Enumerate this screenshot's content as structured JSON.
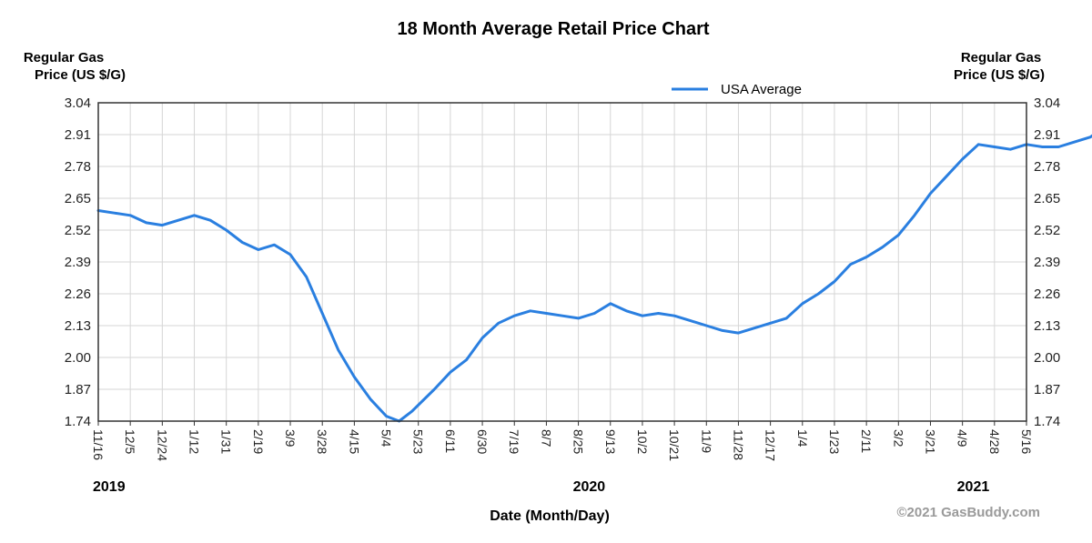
{
  "chart_data": {
    "type": "line",
    "title": "18 Month Average Retail Price Chart",
    "ylabel_left": [
      "Regular Gas",
      "Price (US $/G)"
    ],
    "ylabel_right": [
      "Regular Gas",
      "Price (US $/G)"
    ],
    "xlabel": "Date (Month/Day)",
    "ylim": [
      1.74,
      3.04
    ],
    "yticks": [
      "3.04",
      "2.91",
      "2.78",
      "2.65",
      "2.52",
      "2.39",
      "2.26",
      "2.13",
      "2.00",
      "1.87",
      "1.74"
    ],
    "xticks": [
      "11/16",
      "12/5",
      "12/24",
      "1/12",
      "1/31",
      "2/19",
      "3/9",
      "3/28",
      "4/15",
      "5/4",
      "5/23",
      "6/11",
      "6/30",
      "7/19",
      "8/7",
      "8/25",
      "9/13",
      "10/2",
      "10/21",
      "11/9",
      "11/28",
      "12/17",
      "1/4",
      "1/23",
      "2/11",
      "3/2",
      "3/21",
      "4/9",
      "4/28",
      "5/16"
    ],
    "years": [
      {
        "label": "2019",
        "at_tick": 0
      },
      {
        "label": "2020",
        "at_tick": 15
      },
      {
        "label": "2021",
        "at_tick": 27
      }
    ],
    "grid": true,
    "legend_position": "top-right",
    "series": [
      {
        "name": "USA Average",
        "color": "#2a7fe0",
        "points": [
          [
            0,
            2.6
          ],
          [
            0.5,
            2.59
          ],
          [
            1,
            2.58
          ],
          [
            1.5,
            2.55
          ],
          [
            2,
            2.54
          ],
          [
            2.5,
            2.56
          ],
          [
            3,
            2.58
          ],
          [
            3.5,
            2.56
          ],
          [
            4,
            2.52
          ],
          [
            4.5,
            2.47
          ],
          [
            5,
            2.44
          ],
          [
            5.5,
            2.46
          ],
          [
            6,
            2.42
          ],
          [
            6.5,
            2.33
          ],
          [
            7,
            2.18
          ],
          [
            7.5,
            2.03
          ],
          [
            8,
            1.92
          ],
          [
            8.5,
            1.83
          ],
          [
            9,
            1.76
          ],
          [
            9.4,
            1.74
          ],
          [
            9.8,
            1.78
          ],
          [
            10.5,
            1.87
          ],
          [
            11,
            1.94
          ],
          [
            11.5,
            1.99
          ],
          [
            12,
            2.08
          ],
          [
            12.5,
            2.14
          ],
          [
            13,
            2.17
          ],
          [
            13.5,
            2.19
          ],
          [
            14,
            2.18
          ],
          [
            14.5,
            2.17
          ],
          [
            15,
            2.16
          ],
          [
            15.5,
            2.18
          ],
          [
            16,
            2.22
          ],
          [
            16.5,
            2.19
          ],
          [
            17,
            2.17
          ],
          [
            17.5,
            2.18
          ],
          [
            18,
            2.17
          ],
          [
            18.5,
            2.15
          ],
          [
            19,
            2.13
          ],
          [
            19.5,
            2.11
          ],
          [
            20,
            2.1
          ],
          [
            20.5,
            2.12
          ],
          [
            21,
            2.14
          ],
          [
            21.5,
            2.16
          ],
          [
            22,
            2.22
          ],
          [
            22.5,
            2.26
          ],
          [
            23,
            2.31
          ],
          [
            23.5,
            2.38
          ],
          [
            24,
            2.41
          ],
          [
            24.5,
            2.45
          ],
          [
            25,
            2.5
          ],
          [
            25.5,
            2.58
          ],
          [
            26,
            2.67
          ],
          [
            26.5,
            2.74
          ],
          [
            27,
            2.81
          ],
          [
            27.5,
            2.87
          ],
          [
            28,
            2.86
          ],
          [
            28.5,
            2.85
          ],
          [
            29,
            2.87
          ],
          [
            29.5,
            2.86
          ],
          [
            30,
            2.86
          ],
          [
            30.5,
            2.88
          ],
          [
            31,
            2.9
          ],
          [
            31.5,
            2.95
          ],
          [
            32,
            3.03
          ]
        ]
      }
    ]
  },
  "credit": "©2021 GasBuddy.com",
  "colors": {
    "axis": "#333333",
    "grid": "#d6d6d6",
    "line": "#2a7fe0"
  }
}
